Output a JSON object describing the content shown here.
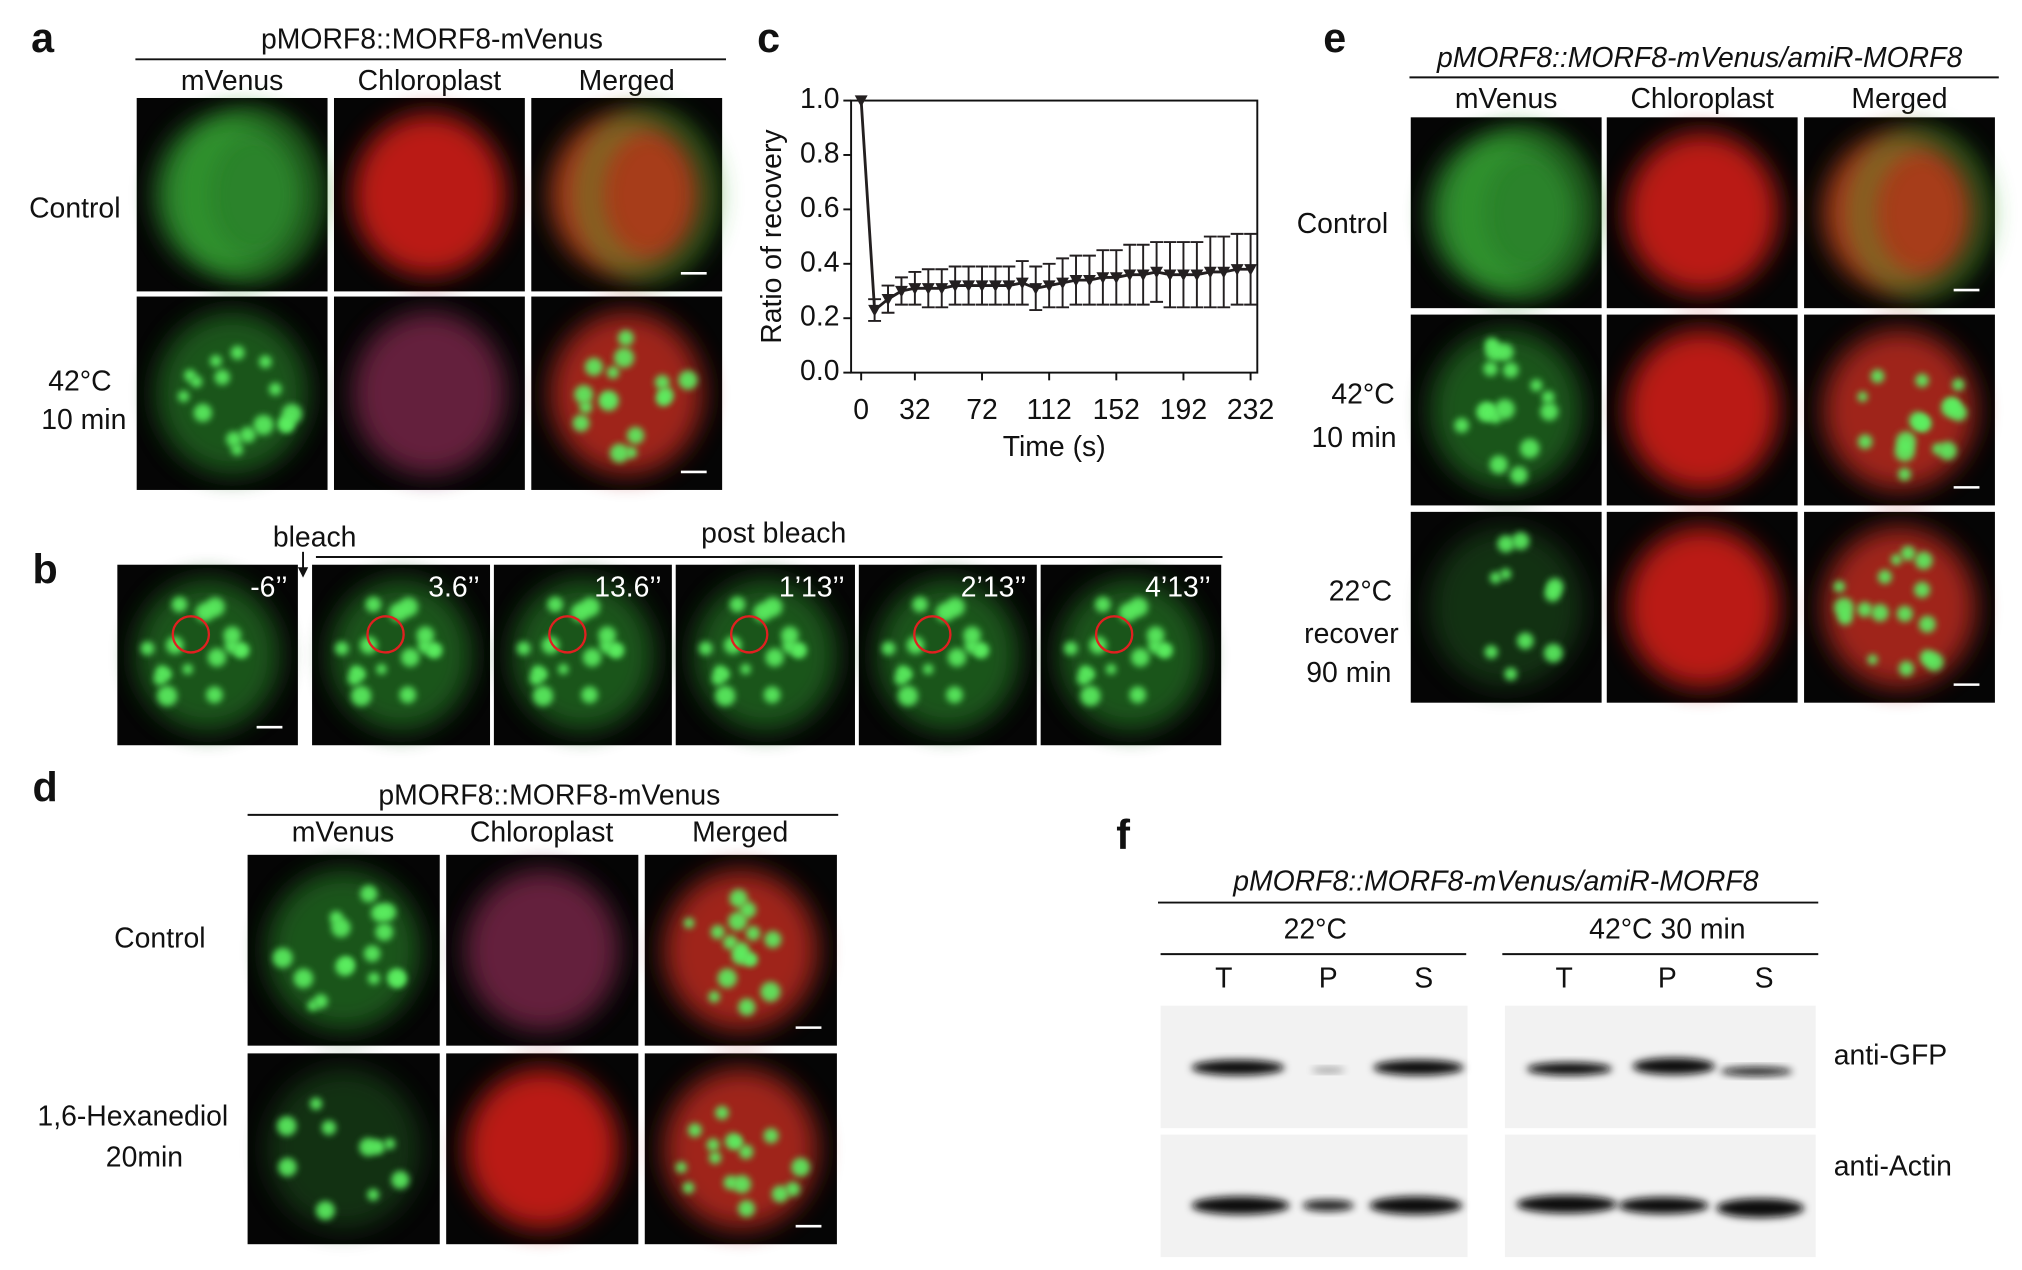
{
  "chart_data": {
    "type": "line",
    "color": "#231f20",
    "x_label": "Time (s)",
    "y_label": "Ratio of recovery",
    "x": [
      0,
      8,
      16,
      24,
      32,
      40,
      48,
      56,
      64,
      72,
      80,
      88,
      96,
      104,
      112,
      120,
      128,
      136,
      144,
      152,
      160,
      168,
      176,
      184,
      192,
      200,
      208,
      216,
      224,
      232
    ],
    "values": [
      1.0,
      0.23,
      0.27,
      0.3,
      0.31,
      0.31,
      0.31,
      0.32,
      0.32,
      0.32,
      0.32,
      0.32,
      0.33,
      0.31,
      0.32,
      0.33,
      0.34,
      0.34,
      0.35,
      0.35,
      0.36,
      0.36,
      0.37,
      0.36,
      0.36,
      0.36,
      0.37,
      0.37,
      0.38,
      0.38
    ],
    "errors": [
      0,
      0.04,
      0.05,
      0.05,
      0.06,
      0.07,
      0.07,
      0.07,
      0.07,
      0.07,
      0.07,
      0.07,
      0.08,
      0.08,
      0.08,
      0.09,
      0.09,
      0.09,
      0.1,
      0.1,
      0.11,
      0.11,
      0.11,
      0.12,
      0.12,
      0.12,
      0.13,
      0.13,
      0.13,
      0.13
    ],
    "xlim": [
      -6,
      236
    ],
    "ylim": [
      0,
      1
    ],
    "xticks": [
      0,
      32,
      72,
      112,
      152,
      192,
      232
    ],
    "yticks": [
      {
        "value": 0,
        "label": "0.0"
      },
      0.2,
      0.4,
      0.6,
      0.8,
      {
        "value": 1,
        "label": "1.0"
      }
    ]
  },
  "figure": {
    "a": {
      "letter": "a",
      "title": "pMORF8::MORF8-mVenus",
      "columns": [
        "mVenus",
        "Chloroplast",
        "Merged"
      ],
      "rows": [
        [
          "Control"
        ],
        [
          "42°C",
          "10 min"
        ]
      ]
    },
    "b": {
      "letter": "b",
      "bleach": "bleach",
      "post_bleach": "post bleach",
      "times": [
        "-6’’",
        "3.6’’",
        "13.6’’",
        "1’13’’",
        "2’13’’",
        "4’13’’"
      ]
    },
    "c": {
      "letter": "c"
    },
    "d": {
      "letter": "d",
      "title": "pMORF8::MORF8-mVenus",
      "columns": [
        "mVenus",
        "Chloroplast",
        "Merged"
      ],
      "rows": [
        [
          "Control"
        ],
        [
          "1,6-Hexanediol",
          "20min"
        ]
      ]
    },
    "e": {
      "letter": "e",
      "title": "pMORF8::MORF8-mVenus/amiR-MORF8",
      "columns": [
        "mVenus",
        "Chloroplast",
        "Merged"
      ],
      "rows": [
        [
          "Control"
        ],
        [
          "42°C",
          "10 min"
        ],
        [
          "22°C",
          "recover",
          "90 min"
        ]
      ]
    },
    "f": {
      "letter": "f",
      "title": "pMORF8::MORF8-mVenus/amiR-MORF8",
      "groups": [
        "22°C",
        "42°C 30 min"
      ],
      "lanes": [
        "T",
        "P",
        "S"
      ],
      "antibodies": [
        "anti-GFP",
        "anti-Actin"
      ]
    }
  }
}
